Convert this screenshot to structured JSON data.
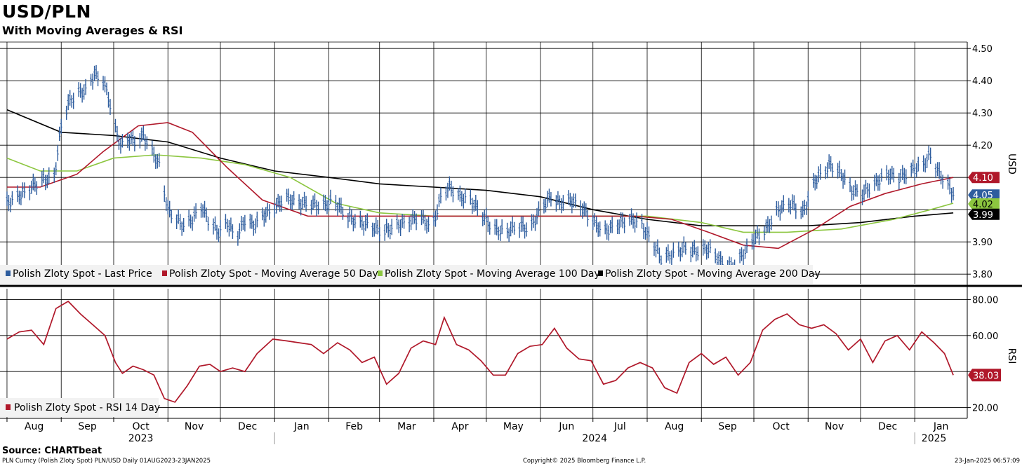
{
  "title": "USD/PLN",
  "subtitle": "With Moving Averages & RSI",
  "source": "Source: CHARTbeat",
  "footer": {
    "left": "PLN Curncy (Polish Zloty Spot) PLN/USD  Daily 01AUG2023-23JAN2025",
    "center": "Copyright© 2025 Bloomberg Finance L.P.",
    "right": "23-Jan-2025 06:57:09"
  },
  "colors": {
    "price": "#2e5d9e",
    "ma50": "#b0182a",
    "ma100": "#8cc63f",
    "ma200": "#000000",
    "rsi": "#b0182a"
  },
  "chart_data": [
    {
      "type": "line",
      "panel": "price",
      "ylabel": "USD",
      "ylim": [
        3.77,
        4.52
      ],
      "yticks": [
        "4.50",
        "4.40",
        "4.30",
        "4.20",
        "4.10",
        "4.00",
        "3.90",
        "3.80"
      ],
      "x_months": [
        "Aug",
        "Sep",
        "Oct",
        "Nov",
        "Dec",
        "Jan",
        "Feb",
        "Mar",
        "Apr",
        "May",
        "Jun",
        "Jul",
        "Aug",
        "Sep",
        "Oct",
        "Nov",
        "Dec",
        "Jan"
      ],
      "x_years": [
        "2023",
        "2024",
        "2025"
      ],
      "legend": [
        "Polish Zloty Spot - Last Price",
        "Polish Zloty Spot - Moving Average 50 Day",
        "Polish Zloty Spot - Moving Average 100 Day",
        "Polish Zloty Spot - Moving Average 200 Day"
      ],
      "legend_position": "bottom-left",
      "grid": true,
      "last_values": [
        {
          "label": "4.10",
          "series": "ma50"
        },
        {
          "label": "4.05",
          "series": "price"
        },
        {
          "label": "4.02",
          "series": "ma100"
        },
        {
          "label": "3.99",
          "series": "ma200"
        }
      ],
      "series": [
        {
          "key": "price",
          "name": "Polish Zloty Spot - Last Price",
          "style": "bars",
          "x": [
            "2023-08-01",
            "2023-08-10",
            "2023-08-20",
            "2023-08-28",
            "2023-09-01",
            "2023-09-05",
            "2023-09-10",
            "2023-09-15",
            "2023-09-20",
            "2023-09-25",
            "2023-09-28",
            "2023-10-02",
            "2023-10-05",
            "2023-10-10",
            "2023-10-13",
            "2023-10-18",
            "2023-10-23",
            "2023-10-27",
            "2023-11-01",
            "2023-11-06",
            "2023-11-10",
            "2023-11-15",
            "2023-11-20",
            "2023-11-25",
            "2023-11-30",
            "2023-12-05",
            "2023-12-10",
            "2023-12-15",
            "2023-12-20",
            "2023-12-25",
            "2023-12-31",
            "2024-01-07",
            "2024-01-14",
            "2024-01-21",
            "2024-01-28",
            "2024-02-04",
            "2024-02-11",
            "2024-02-18",
            "2024-02-25",
            "2024-03-03",
            "2024-03-10",
            "2024-03-17",
            "2024-03-24",
            "2024-03-31",
            "2024-04-05",
            "2024-04-10",
            "2024-04-16",
            "2024-04-22",
            "2024-04-28",
            "2024-05-05",
            "2024-05-12",
            "2024-05-19",
            "2024-05-26",
            "2024-06-02",
            "2024-06-07",
            "2024-06-12",
            "2024-06-18",
            "2024-06-24",
            "2024-06-30",
            "2024-07-07",
            "2024-07-14",
            "2024-07-21",
            "2024-07-28",
            "2024-08-04",
            "2024-08-09",
            "2024-08-15",
            "2024-08-22",
            "2024-08-29",
            "2024-09-05",
            "2024-09-12",
            "2024-09-19",
            "2024-09-26",
            "2024-10-01",
            "2024-10-08",
            "2024-10-15",
            "2024-10-22",
            "2024-10-29",
            "2024-11-05",
            "2024-11-10",
            "2024-11-14",
            "2024-11-20",
            "2024-11-26",
            "2024-12-02",
            "2024-12-09",
            "2024-12-16",
            "2024-12-23",
            "2024-12-30",
            "2025-01-06",
            "2025-01-10",
            "2025-01-14",
            "2025-01-18",
            "2025-01-23"
          ],
          "values": [
            4.02,
            4.05,
            4.09,
            4.1,
            4.26,
            4.33,
            4.36,
            4.37,
            4.42,
            4.4,
            4.35,
            4.25,
            4.2,
            4.22,
            4.21,
            4.23,
            4.18,
            4.14,
            4.0,
            3.97,
            3.95,
            3.97,
            4.01,
            3.96,
            3.93,
            3.96,
            3.91,
            3.97,
            3.95,
            3.98,
            4.0,
            4.04,
            4.02,
            4.02,
            4.01,
            4.03,
            3.98,
            3.96,
            3.95,
            3.93,
            3.95,
            3.96,
            3.98,
            3.94,
            4.04,
            4.07,
            4.04,
            4.03,
            3.99,
            3.94,
            3.93,
            3.95,
            3.94,
            4.01,
            4.04,
            4.02,
            4.03,
            4.01,
            3.97,
            3.93,
            3.95,
            3.97,
            3.96,
            3.9,
            3.85,
            3.86,
            3.88,
            3.87,
            3.88,
            3.84,
            3.82,
            3.87,
            3.91,
            3.94,
            4.0,
            4.02,
            3.99,
            4.09,
            4.12,
            4.14,
            4.11,
            4.06,
            4.05,
            4.08,
            4.11,
            4.1,
            4.12,
            4.14,
            4.17,
            4.12,
            4.09,
            4.05
          ]
        },
        {
          "key": "ma50",
          "name": "Polish Zloty Spot - Moving Average 50 Day",
          "x": [
            "2023-08-01",
            "2023-08-20",
            "2023-09-10",
            "2023-09-25",
            "2023-10-15",
            "2023-11-01",
            "2023-11-15",
            "2023-12-05",
            "2023-12-25",
            "2024-01-20",
            "2024-02-15",
            "2024-03-10",
            "2024-04-05",
            "2024-04-25",
            "2024-05-15",
            "2024-06-10",
            "2024-07-05",
            "2024-07-25",
            "2024-08-15",
            "2024-09-05",
            "2024-09-25",
            "2024-10-15",
            "2024-11-05",
            "2024-11-25",
            "2024-12-15",
            "2025-01-05",
            "2025-01-23"
          ],
          "values": [
            4.07,
            4.07,
            4.11,
            4.18,
            4.26,
            4.27,
            4.24,
            4.13,
            4.03,
            3.98,
            3.98,
            3.98,
            3.98,
            3.98,
            3.98,
            3.98,
            3.98,
            3.98,
            3.97,
            3.93,
            3.89,
            3.88,
            3.94,
            4.01,
            4.05,
            4.08,
            4.1
          ]
        },
        {
          "key": "ma100",
          "name": "Polish Zloty Spot - Moving Average 100 Day",
          "x": [
            "2023-08-01",
            "2023-08-20",
            "2023-09-10",
            "2023-10-01",
            "2023-10-25",
            "2023-11-20",
            "2023-12-15",
            "2024-01-10",
            "2024-02-05",
            "2024-03-01",
            "2024-04-01",
            "2024-05-01",
            "2024-06-01",
            "2024-07-01",
            "2024-08-01",
            "2024-09-01",
            "2024-09-25",
            "2024-10-20",
            "2024-11-20",
            "2024-12-20",
            "2025-01-10",
            "2025-01-23"
          ],
          "values": [
            4.16,
            4.12,
            4.12,
            4.16,
            4.17,
            4.16,
            4.14,
            4.1,
            4.02,
            3.99,
            3.98,
            3.98,
            3.98,
            3.98,
            3.98,
            3.96,
            3.93,
            3.93,
            3.94,
            3.97,
            4.0,
            4.02
          ]
        },
        {
          "key": "ma200",
          "name": "Polish Zloty Spot - Moving Average 200 Day",
          "x": [
            "2023-08-01",
            "2023-09-01",
            "2023-10-01",
            "2023-11-01",
            "2023-12-01",
            "2024-01-01",
            "2024-02-01",
            "2024-03-01",
            "2024-04-01",
            "2024-05-01",
            "2024-06-01",
            "2024-07-01",
            "2024-08-01",
            "2024-09-01",
            "2024-10-01",
            "2024-11-01",
            "2024-12-01",
            "2025-01-01",
            "2025-01-23"
          ],
          "values": [
            4.31,
            4.24,
            4.23,
            4.21,
            4.16,
            4.12,
            4.1,
            4.08,
            4.07,
            4.06,
            4.04,
            4.0,
            3.97,
            3.95,
            3.95,
            3.95,
            3.96,
            3.98,
            3.99
          ]
        }
      ]
    },
    {
      "type": "line",
      "panel": "rsi",
      "ylabel": "RSI",
      "ylim": [
        14,
        86
      ],
      "yticks": [
        "80.00",
        "60.00",
        "20.00"
      ],
      "legend": [
        "Polish Zloty Spot - RSI 14 Day"
      ],
      "legend_position": "bottom-left",
      "last_value": "38.03",
      "series": [
        {
          "key": "rsi",
          "name": "Polish Zloty Spot - RSI 14 Day",
          "x": [
            "2023-08-01",
            "2023-08-08",
            "2023-08-15",
            "2023-08-22",
            "2023-08-29",
            "2023-09-05",
            "2023-09-12",
            "2023-09-19",
            "2023-09-26",
            "2023-10-02",
            "2023-10-06",
            "2023-10-12",
            "2023-10-18",
            "2023-10-24",
            "2023-10-30",
            "2023-11-05",
            "2023-11-12",
            "2023-11-19",
            "2023-11-25",
            "2023-12-01",
            "2023-12-08",
            "2023-12-15",
            "2023-12-22",
            "2023-12-31",
            "2024-01-08",
            "2024-01-15",
            "2024-01-22",
            "2024-01-29",
            "2024-02-06",
            "2024-02-13",
            "2024-02-20",
            "2024-02-27",
            "2024-03-05",
            "2024-03-12",
            "2024-03-19",
            "2024-03-26",
            "2024-04-02",
            "2024-04-07",
            "2024-04-14",
            "2024-04-21",
            "2024-04-28",
            "2024-05-05",
            "2024-05-12",
            "2024-05-19",
            "2024-05-26",
            "2024-06-02",
            "2024-06-09",
            "2024-06-16",
            "2024-06-23",
            "2024-06-30",
            "2024-07-07",
            "2024-07-14",
            "2024-07-21",
            "2024-07-28",
            "2024-08-04",
            "2024-08-11",
            "2024-08-18",
            "2024-08-25",
            "2024-09-01",
            "2024-09-08",
            "2024-09-15",
            "2024-09-22",
            "2024-09-29",
            "2024-10-06",
            "2024-10-13",
            "2024-10-20",
            "2024-10-27",
            "2024-11-03",
            "2024-11-10",
            "2024-11-17",
            "2024-11-24",
            "2024-12-01",
            "2024-12-08",
            "2024-12-15",
            "2024-12-22",
            "2024-12-29",
            "2025-01-05",
            "2025-01-12",
            "2025-01-18",
            "2025-01-23"
          ],
          "values": [
            58,
            62,
            63,
            55,
            75,
            79,
            72,
            66,
            60,
            45,
            39,
            43,
            41,
            38,
            25,
            23,
            32,
            43,
            44,
            40,
            42,
            40,
            50,
            58,
            57,
            56,
            55,
            50,
            56,
            52,
            45,
            48,
            33,
            39,
            53,
            57,
            55,
            70,
            55,
            52,
            46,
            38,
            38,
            50,
            54,
            55,
            64,
            53,
            47,
            46,
            33,
            35,
            42,
            45,
            42,
            31,
            28,
            45,
            50,
            44,
            48,
            38,
            45,
            63,
            69,
            72,
            66,
            64,
            66,
            61,
            52,
            58,
            45,
            57,
            60,
            52,
            62,
            56,
            50,
            38.03
          ]
        }
      ]
    }
  ]
}
